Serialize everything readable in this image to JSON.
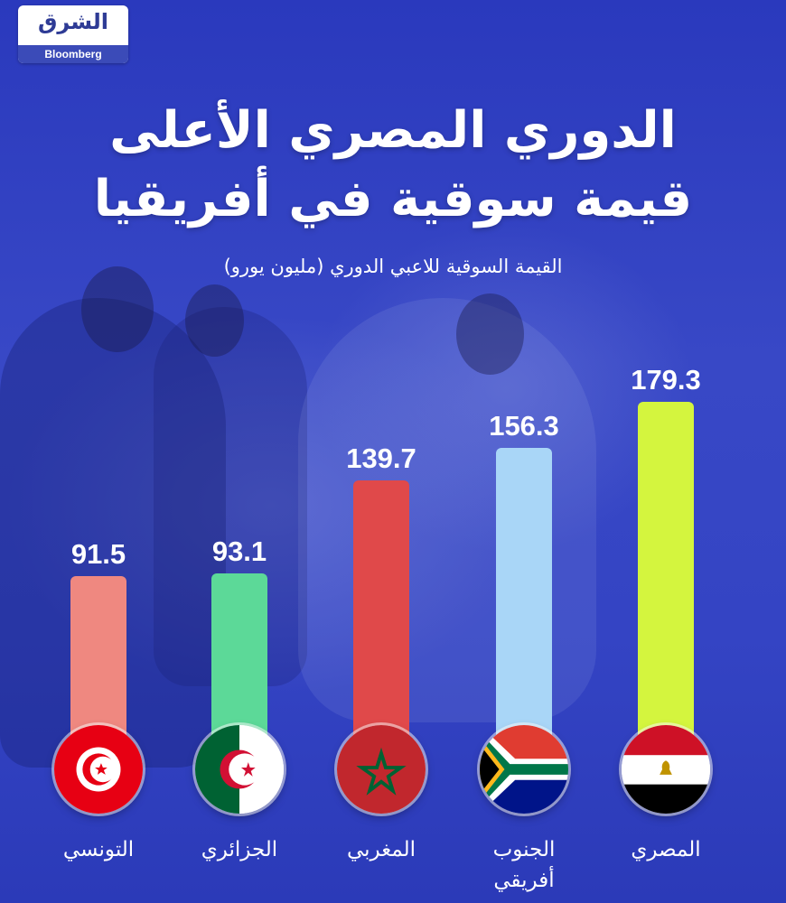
{
  "logo": {
    "arabic": "الشرق",
    "english": "Bloomberg"
  },
  "title_line1": "الدوري المصري الأعلى",
  "title_line2": "قيمة سوقية في أفريقيا",
  "subtitle": "القيمة السوقية للاعبي الدوري (مليون يورو)",
  "chart_data": {
    "type": "bar",
    "title": "الدوري المصري الأعلى قيمة سوقية في أفريقيا",
    "subtitle": "القيمة السوقية للاعبي الدوري (مليون يورو)",
    "categories": [
      "التونسي",
      "الجزائري",
      "المغربي",
      "الجنوب أفريقي",
      "المصري"
    ],
    "category_lines": [
      [
        "التونسي"
      ],
      [
        "الجزائري"
      ],
      [
        "المغربي"
      ],
      [
        "الجنوب",
        "أفريقي"
      ],
      [
        "المصري"
      ]
    ],
    "values": [
      91.5,
      93.1,
      139.7,
      156.3,
      179.3
    ],
    "value_labels": [
      "91.5",
      "93.1",
      "139.7",
      "156.3",
      "179.3"
    ],
    "colors": [
      "#ef8880",
      "#5cd998",
      "#e0494a",
      "#a9d6f7",
      "#d4f53e"
    ],
    "flags": [
      "tunisia-flag-icon",
      "algeria-flag-icon",
      "morocco-flag-icon",
      "south-africa-flag-icon",
      "egypt-flag-icon"
    ],
    "ylim": [
      0,
      179.3
    ],
    "grid": false,
    "legend": "none"
  }
}
